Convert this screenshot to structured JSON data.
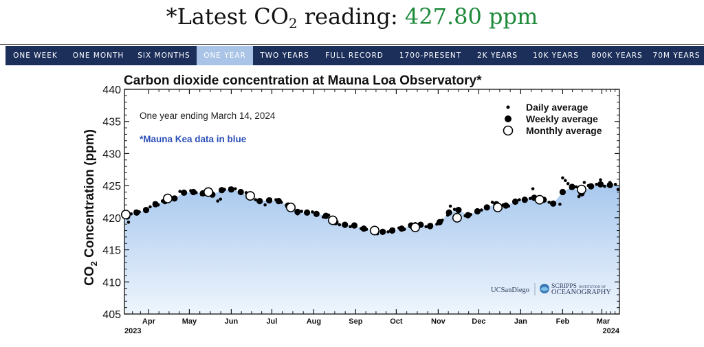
{
  "headline": {
    "prefix": "*Latest CO",
    "subscript": "2",
    "suffix": " reading: ",
    "value": "427.80 ppm",
    "value_color": "#1e8a3a"
  },
  "nav": {
    "tabs": [
      {
        "label": "ONE WEEK",
        "active": false
      },
      {
        "label": "ONE MONTH",
        "active": false
      },
      {
        "label": "SIX MONTHS",
        "active": false
      },
      {
        "label": "ONE YEAR",
        "active": true
      },
      {
        "label": "TWO YEARS",
        "active": false
      },
      {
        "label": "FULL RECORD",
        "active": false
      },
      {
        "label": "1700-PRESENT",
        "active": false
      },
      {
        "label": "2K YEARS",
        "active": false
      },
      {
        "label": "10K YEARS",
        "active": false
      },
      {
        "label": "800K YEARS",
        "active": false
      },
      {
        "label": "70M YEARS",
        "active": false
      }
    ],
    "background": "#1b2f5a",
    "active_background": "#a9c4e6"
  },
  "chart_data": {
    "type": "scatter",
    "title": "Carbon dioxide concentration at Mauna Loa Observatory*",
    "ylabel_prefix": "CO",
    "ylabel_sub": "2",
    "ylabel_suffix": " Concentration (ppm)",
    "xlabel": "",
    "ylim": [
      405,
      440
    ],
    "xlim": [
      "2023-03-14",
      "2024-03-14"
    ],
    "yticks": [
      "405",
      "410",
      "415",
      "420",
      "425",
      "430",
      "435",
      "440"
    ],
    "month_ticks": [
      {
        "date": "2023-04-01",
        "label": "Apr"
      },
      {
        "date": "2023-05-01",
        "label": "May"
      },
      {
        "date": "2023-06-01",
        "label": "Jun"
      },
      {
        "date": "2023-07-01",
        "label": "Jul"
      },
      {
        "date": "2023-08-01",
        "label": "Aug"
      },
      {
        "date": "2023-09-01",
        "label": "Sep"
      },
      {
        "date": "2023-10-01",
        "label": "Oct"
      },
      {
        "date": "2023-11-01",
        "label": "Nov"
      },
      {
        "date": "2023-12-01",
        "label": "Dec"
      },
      {
        "date": "2024-01-01",
        "label": "Jan"
      },
      {
        "date": "2024-02-01",
        "label": "Feb"
      },
      {
        "date": "2024-03-01",
        "label": "Mar"
      }
    ],
    "year_start_label": "2023",
    "year_end_label": "2024",
    "annotation": "One year ending March 14, 2024",
    "note": "*Mauna Kea data in blue",
    "legend": [
      "Daily average",
      "Weekly average",
      "Monthly average"
    ],
    "legend_position": "top-right",
    "fill_color_top": "#a8c8ee",
    "fill_color_bottom": "#eef5fd",
    "grid": false,
    "series": [
      {
        "name": "Daily average",
        "points": [
          [
            "2023-03-15",
            420.2
          ],
          [
            "2023-03-17",
            419.3
          ],
          [
            "2023-03-19",
            420.6
          ],
          [
            "2023-03-22",
            421.0
          ],
          [
            "2023-03-25",
            420.9
          ],
          [
            "2023-03-29",
            421.3
          ],
          [
            "2023-04-02",
            421.7
          ],
          [
            "2023-04-05",
            422.3
          ],
          [
            "2023-04-08",
            422.0
          ],
          [
            "2023-04-11",
            422.6
          ],
          [
            "2023-04-14",
            423.4
          ],
          [
            "2023-04-17",
            422.9
          ],
          [
            "2023-04-20",
            423.2
          ],
          [
            "2023-04-24",
            424.1
          ],
          [
            "2023-04-28",
            423.8
          ],
          [
            "2023-05-02",
            424.2
          ],
          [
            "2023-05-06",
            423.9
          ],
          [
            "2023-05-10",
            423.6
          ],
          [
            "2023-05-14",
            424.0
          ],
          [
            "2023-05-18",
            423.9
          ],
          [
            "2023-05-22",
            422.6
          ],
          [
            "2023-05-24",
            422.9
          ],
          [
            "2023-05-27",
            424.4
          ],
          [
            "2023-05-31",
            424.6
          ],
          [
            "2023-06-04",
            424.5
          ],
          [
            "2023-06-08",
            424.1
          ],
          [
            "2023-06-12",
            423.9
          ],
          [
            "2023-06-15",
            423.1
          ],
          [
            "2023-06-19",
            422.8
          ],
          [
            "2023-06-23",
            422.5
          ],
          [
            "2023-06-26",
            422.0
          ],
          [
            "2023-06-30",
            422.9
          ],
          [
            "2023-07-04",
            422.8
          ],
          [
            "2023-07-08",
            422.4
          ],
          [
            "2023-07-12",
            422.0
          ],
          [
            "2023-07-16",
            421.6
          ],
          [
            "2023-07-20",
            420.6
          ],
          [
            "2023-07-23",
            421.0
          ],
          [
            "2023-07-27",
            420.6
          ],
          [
            "2023-07-31",
            420.9
          ],
          [
            "2023-08-04",
            420.5
          ],
          [
            "2023-08-08",
            420.1
          ],
          [
            "2023-08-12",
            420.4
          ],
          [
            "2023-08-16",
            419.4
          ],
          [
            "2023-08-20",
            418.9
          ],
          [
            "2023-08-24",
            419.0
          ],
          [
            "2023-08-28",
            418.6
          ],
          [
            "2023-09-01",
            418.8
          ],
          [
            "2023-09-05",
            418.3
          ],
          [
            "2023-09-09",
            418.2
          ],
          [
            "2023-09-13",
            418.0
          ],
          [
            "2023-09-17",
            417.5
          ],
          [
            "2023-09-21",
            417.9
          ],
          [
            "2023-09-25",
            417.8
          ],
          [
            "2023-09-29",
            418.2
          ],
          [
            "2023-10-03",
            418.4
          ],
          [
            "2023-10-07",
            418.2
          ],
          [
            "2023-10-11",
            418.7
          ],
          [
            "2023-10-15",
            419.1
          ],
          [
            "2023-10-19",
            418.9
          ],
          [
            "2023-10-23",
            418.6
          ],
          [
            "2023-10-27",
            418.9
          ],
          [
            "2023-10-31",
            419.0
          ],
          [
            "2023-11-04",
            419.6
          ],
          [
            "2023-11-08",
            420.4
          ],
          [
            "2023-11-10",
            421.8
          ],
          [
            "2023-11-13",
            421.3
          ],
          [
            "2023-11-17",
            421.3
          ],
          [
            "2023-11-21",
            420.3
          ],
          [
            "2023-11-25",
            420.5
          ],
          [
            "2023-11-29",
            421.0
          ],
          [
            "2023-12-03",
            421.2
          ],
          [
            "2023-12-07",
            421.7
          ],
          [
            "2023-12-11",
            422.4
          ],
          [
            "2023-12-15",
            422.2
          ],
          [
            "2023-12-19",
            422.0
          ],
          [
            "2023-12-23",
            421.8
          ],
          [
            "2023-12-27",
            422.4
          ],
          [
            "2023-12-31",
            422.8
          ],
          [
            "2024-01-04",
            422.7
          ],
          [
            "2024-01-08",
            423.0
          ],
          [
            "2024-01-10",
            424.5
          ],
          [
            "2024-01-14",
            422.6
          ],
          [
            "2024-01-18",
            422.9
          ],
          [
            "2024-01-22",
            422.4
          ],
          [
            "2024-01-26",
            422.1
          ],
          [
            "2024-01-30",
            422.1
          ],
          [
            "2024-02-01",
            426.2
          ],
          [
            "2024-02-03",
            425.8
          ],
          [
            "2024-02-05",
            425.3
          ],
          [
            "2024-02-07",
            424.6
          ],
          [
            "2024-02-09",
            424.9
          ],
          [
            "2024-02-11",
            424.8
          ],
          [
            "2024-02-13",
            423.3
          ],
          [
            "2024-02-15",
            423.6
          ],
          [
            "2024-02-17",
            425.5
          ],
          [
            "2024-02-20",
            425.0
          ],
          [
            "2024-02-23",
            424.9
          ],
          [
            "2024-02-26",
            425.2
          ],
          [
            "2024-02-29",
            425.9
          ],
          [
            "2024-03-03",
            424.9
          ],
          [
            "2024-03-07",
            425.5
          ],
          [
            "2024-03-11",
            425.2
          ],
          [
            "2024-03-13",
            424.4
          ]
        ]
      },
      {
        "name": "Weekly average",
        "points": [
          [
            "2023-03-16",
            420.2
          ],
          [
            "2023-03-23",
            420.8
          ],
          [
            "2023-03-30",
            421.2
          ],
          [
            "2023-04-06",
            422.1
          ],
          [
            "2023-04-13",
            422.6
          ],
          [
            "2023-04-20",
            423.0
          ],
          [
            "2023-04-27",
            423.9
          ],
          [
            "2023-05-04",
            424.0
          ],
          [
            "2023-05-11",
            423.8
          ],
          [
            "2023-05-18",
            423.6
          ],
          [
            "2023-05-25",
            424.3
          ],
          [
            "2023-06-01",
            424.4
          ],
          [
            "2023-06-08",
            424.0
          ],
          [
            "2023-06-15",
            423.2
          ],
          [
            "2023-06-22",
            422.6
          ],
          [
            "2023-06-29",
            422.7
          ],
          [
            "2023-07-06",
            422.6
          ],
          [
            "2023-07-13",
            421.9
          ],
          [
            "2023-07-20",
            420.9
          ],
          [
            "2023-07-27",
            420.8
          ],
          [
            "2023-08-03",
            420.6
          ],
          [
            "2023-08-10",
            420.3
          ],
          [
            "2023-08-17",
            419.3
          ],
          [
            "2023-08-24",
            418.9
          ],
          [
            "2023-08-31",
            418.8
          ],
          [
            "2023-09-07",
            418.3
          ],
          [
            "2023-09-14",
            418.0
          ],
          [
            "2023-09-21",
            417.8
          ],
          [
            "2023-09-28",
            418.0
          ],
          [
            "2023-10-05",
            418.3
          ],
          [
            "2023-10-12",
            418.8
          ],
          [
            "2023-10-19",
            418.9
          ],
          [
            "2023-10-26",
            418.7
          ],
          [
            "2023-11-02",
            419.3
          ],
          [
            "2023-11-09",
            420.8
          ],
          [
            "2023-11-16",
            421.2
          ],
          [
            "2023-11-23",
            420.4
          ],
          [
            "2023-11-30",
            421.0
          ],
          [
            "2023-12-07",
            421.6
          ],
          [
            "2023-12-14",
            422.1
          ],
          [
            "2023-12-21",
            421.9
          ],
          [
            "2023-12-28",
            422.5
          ],
          [
            "2024-01-04",
            422.8
          ],
          [
            "2024-01-11",
            423.1
          ],
          [
            "2024-01-18",
            422.8
          ],
          [
            "2024-01-25",
            422.2
          ],
          [
            "2024-02-01",
            424.0
          ],
          [
            "2024-02-08",
            424.8
          ],
          [
            "2024-02-15",
            423.8
          ],
          [
            "2024-02-22",
            424.9
          ],
          [
            "2024-02-29",
            425.2
          ],
          [
            "2024-03-07",
            425.1
          ]
        ]
      },
      {
        "name": "Monthly average",
        "points": [
          [
            "2023-03-15",
            420.5
          ],
          [
            "2023-04-15",
            423.0
          ],
          [
            "2023-05-15",
            424.0
          ],
          [
            "2023-06-15",
            423.4
          ],
          [
            "2023-07-15",
            421.6
          ],
          [
            "2023-08-15",
            419.6
          ],
          [
            "2023-09-15",
            418.0
          ],
          [
            "2023-10-15",
            418.5
          ],
          [
            "2023-11-15",
            420.0
          ],
          [
            "2023-12-15",
            421.6
          ],
          [
            "2024-01-15",
            422.8
          ],
          [
            "2024-02-15",
            424.4
          ]
        ]
      }
    ]
  },
  "logos": {
    "ucsd": "UCSanDiego",
    "scripps_line1": "SCRIPPS",
    "scripps_small": "INSTITUTION OF",
    "scripps_line2": "OCEANOGRAPHY"
  }
}
